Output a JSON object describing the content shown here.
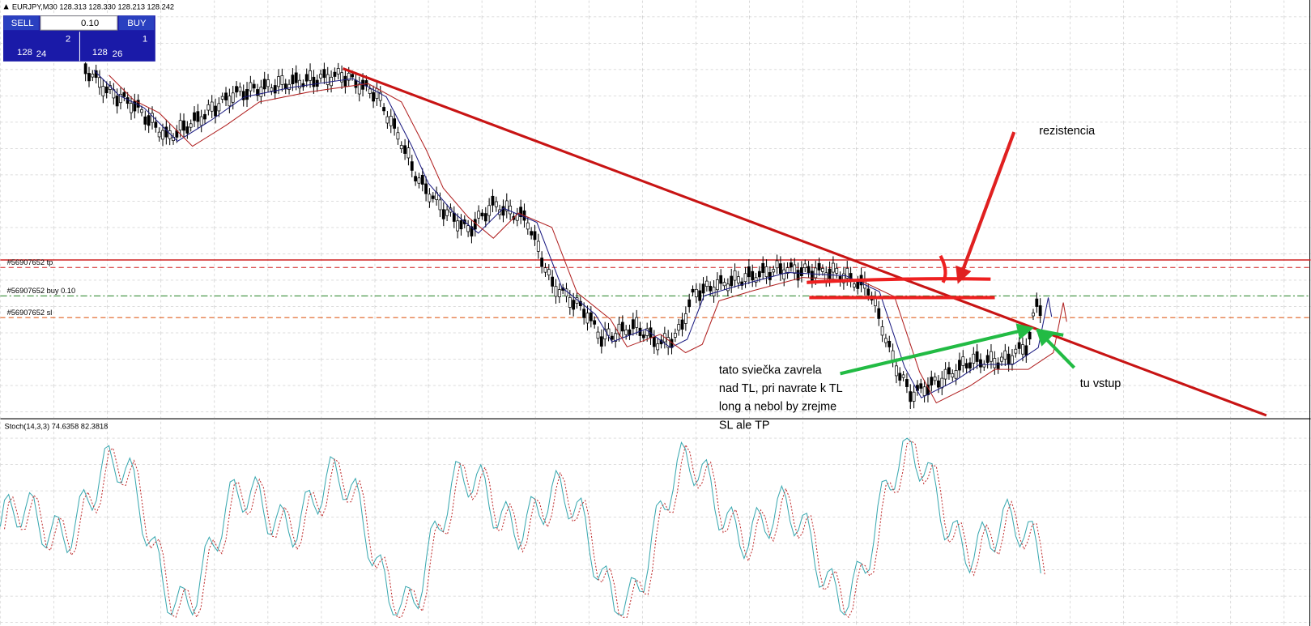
{
  "header": {
    "symbol": "EURJPY,M30 128.313 128.330 128.213 128.242"
  },
  "trade_panel": {
    "sell": "SELL",
    "lot": "0.10",
    "buy": "BUY",
    "sell_price": {
      "prefix": "128",
      "big": "24",
      "sup": "2"
    },
    "buy_price": {
      "prefix": "128",
      "big": "26",
      "sup": "1"
    }
  },
  "order_lines": {
    "tp": "#56907652 tp",
    "buy": "#56907652 buy 0.10",
    "sl": "#56907652 sl"
  },
  "indicator": {
    "label": "Stoch(14,3,3) 74.6358 82.3818"
  },
  "annotations": {
    "resistance": "rezistencia",
    "note": [
      "tato sviečka zavrela",
      "nad TL, pri navrate k TL",
      "long a nebol by zrejme",
      "SL ale TP"
    ],
    "entry": "tu vstup"
  }
}
